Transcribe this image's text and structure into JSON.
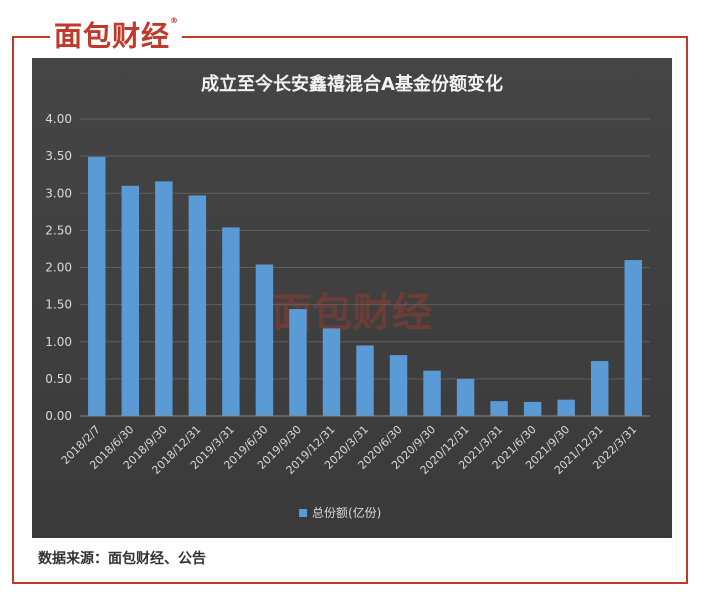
{
  "brand": {
    "logo_text": "面包财经",
    "registered_mark": "®",
    "accent_color": "#c0392b"
  },
  "source_note": "数据来源：面包财经、公告",
  "chart_data": {
    "type": "bar",
    "title": "成立至今长安鑫禧混合A基金份额变化",
    "xlabel": "",
    "ylabel": "",
    "ylim": [
      0,
      4
    ],
    "yticks": [
      "0.00",
      "0.50",
      "1.00",
      "1.50",
      "2.00",
      "2.50",
      "3.00",
      "3.50",
      "4.00"
    ],
    "grid": true,
    "legend": "bottom",
    "categories": [
      "2018/2/7",
      "2018/6/30",
      "2018/9/30",
      "2018/12/31",
      "2019/3/31",
      "2019/6/30",
      "2019/9/30",
      "2019/12/31",
      "2020/3/31",
      "2020/6/30",
      "2020/9/30",
      "2020/12/31",
      "2021/3/31",
      "2021/6/30",
      "2021/9/30",
      "2021/12/31",
      "2022/3/31"
    ],
    "series": [
      {
        "name": "总份额(亿份)",
        "color": "#5b9bd5",
        "values": [
          3.49,
          3.1,
          3.16,
          2.97,
          2.54,
          2.04,
          1.44,
          1.18,
          0.95,
          0.82,
          0.61,
          0.5,
          0.2,
          0.19,
          0.22,
          0.74,
          2.1
        ]
      }
    ]
  }
}
